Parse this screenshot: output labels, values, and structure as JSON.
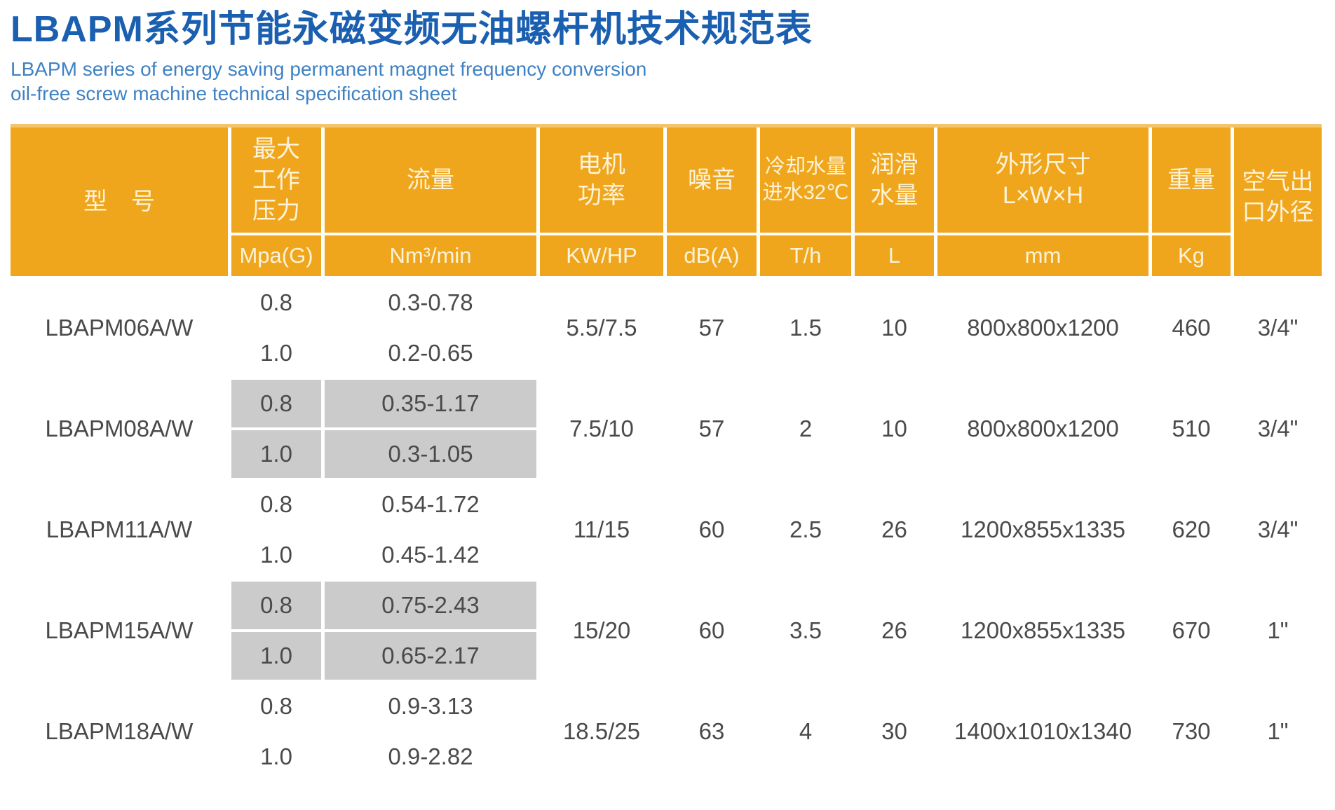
{
  "title": {
    "zh": "LBAPM系列节能永磁变频无油螺杆机技术规范表",
    "en_line1": "LBAPM series of energy saving permanent magnet frequency conversion",
    "en_line2": "oil-free screw machine technical specification sheet"
  },
  "colors": {
    "header_orange": "#F0A61C",
    "header_top_strip": "#F2C56C",
    "row_gray": "#CBCBCB",
    "row_white": "#FFFFFF",
    "title_blue": "#1A5FB0",
    "subtitle_blue": "#3E82C4",
    "header_text": "#FCF3D9",
    "cell_text": "#4A4A4A"
  },
  "table": {
    "headers": {
      "model": "型　号",
      "pressure": "最大\n工作\n压力",
      "flow": "流量",
      "power": "电机\n功率",
      "noise": "噪音",
      "cooling": "冷却水量\n进水32℃",
      "lube": "润滑\n水量",
      "dims": "外形尺寸\nL×W×H",
      "weight": "重量",
      "outlet": "空气出\n口外径"
    },
    "units": {
      "pressure": "Mpa(G)",
      "flow": "Nm³/min",
      "power": "KW/HP",
      "noise": "dB(A)",
      "cooling": "T/h",
      "lube": "L",
      "dims": "mm",
      "weight": "Kg"
    },
    "rows": [
      {
        "model": "LBAPM06A/W",
        "variants": [
          {
            "pressure": "0.8",
            "flow": "0.3-0.78"
          },
          {
            "pressure": "1.0",
            "flow": "0.2-0.65"
          }
        ],
        "power": "5.5/7.5",
        "noise": "57",
        "cooling": "1.5",
        "lube": "10",
        "dims": "800x800x1200",
        "weight": "460",
        "outlet": "3/4\""
      },
      {
        "model": "LBAPM08A/W",
        "variants": [
          {
            "pressure": "0.8",
            "flow": "0.35-1.17"
          },
          {
            "pressure": "1.0",
            "flow": "0.3-1.05"
          }
        ],
        "power": "7.5/10",
        "noise": "57",
        "cooling": "2",
        "lube": "10",
        "dims": "800x800x1200",
        "weight": "510",
        "outlet": "3/4\""
      },
      {
        "model": "LBAPM11A/W",
        "variants": [
          {
            "pressure": "0.8",
            "flow": "0.54-1.72"
          },
          {
            "pressure": "1.0",
            "flow": "0.45-1.42"
          }
        ],
        "power": "11/15",
        "noise": "60",
        "cooling": "2.5",
        "lube": "26",
        "dims": "1200x855x1335",
        "weight": "620",
        "outlet": "3/4\""
      },
      {
        "model": "LBAPM15A/W",
        "variants": [
          {
            "pressure": "0.8",
            "flow": "0.75-2.43"
          },
          {
            "pressure": "1.0",
            "flow": "0.65-2.17"
          }
        ],
        "power": "15/20",
        "noise": "60",
        "cooling": "3.5",
        "lube": "26",
        "dims": "1200x855x1335",
        "weight": "670",
        "outlet": "1\""
      },
      {
        "model": "LBAPM18A/W",
        "variants": [
          {
            "pressure": "0.8",
            "flow": "0.9-3.13"
          },
          {
            "pressure": "1.0",
            "flow": "0.9-2.82"
          }
        ],
        "power": "18.5/25",
        "noise": "63",
        "cooling": "4",
        "lube": "30",
        "dims": "1400x1010x1340",
        "weight": "730",
        "outlet": "1\""
      }
    ]
  }
}
